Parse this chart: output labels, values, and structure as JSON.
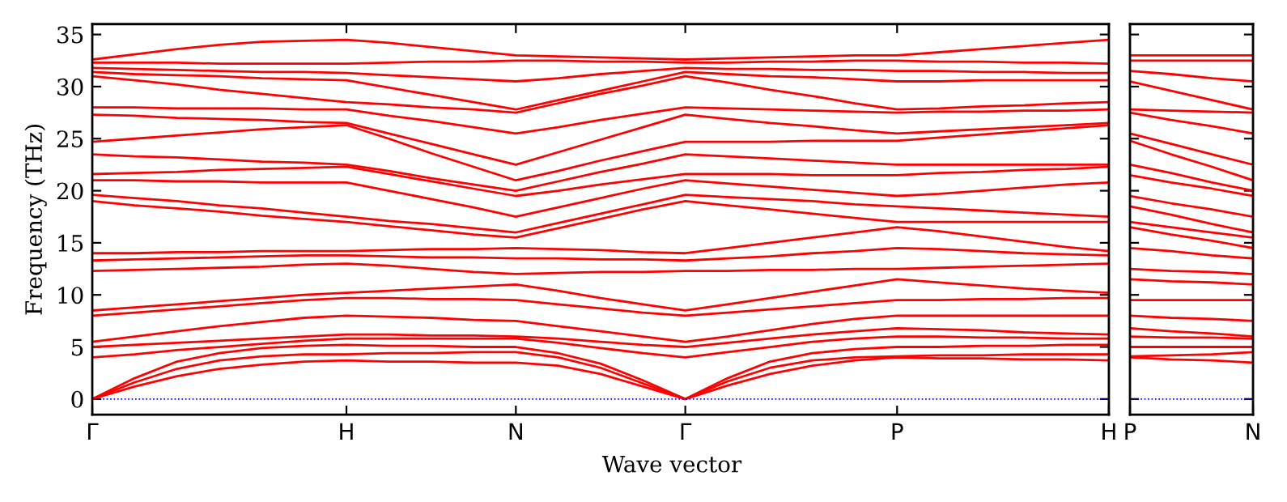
{
  "chart_data": [
    {
      "type": "line",
      "ylabel": "Frequency (THz)",
      "xlabel": "Wave vector",
      "categories": [
        "Γ",
        null,
        null,
        null,
        null,
        null,
        "H",
        null,
        null,
        null,
        "N",
        null,
        null,
        null,
        "Γ",
        null,
        null,
        null,
        null,
        "P",
        null,
        null,
        null,
        null,
        "H"
      ],
      "ylim": [
        -1.5,
        36
      ],
      "yticks": [
        0,
        5,
        10,
        15,
        20,
        25,
        30,
        35
      ],
      "ref_lines": [
        {
          "axis": "y",
          "value": 0,
          "color": "#0000ff",
          "line_style": "dotted"
        }
      ],
      "marker": "none",
      "line_style": "solid",
      "series": [
        {
          "color": "#ff0000",
          "values": [
            0,
            1.2,
            2.2,
            2.9,
            3.3,
            3.6,
            3.7,
            3.6,
            3.6,
            3.5,
            3.5,
            3.2,
            2.4,
            1.2,
            0,
            1.3,
            2.4,
            3.2,
            3.7,
            4.0,
            3.9,
            3.9,
            3.8,
            3.8,
            3.7
          ]
        },
        {
          "color": "#ff0000",
          "values": [
            0,
            1.6,
            2.9,
            3.7,
            4.1,
            4.3,
            4.3,
            4.4,
            4.4,
            4.5,
            4.5,
            4.0,
            3.0,
            1.5,
            0,
            1.7,
            3.0,
            3.7,
            4.0,
            4.1,
            4.2,
            4.2,
            4.3,
            4.3,
            4.3
          ]
        },
        {
          "color": "#ff0000",
          "values": [
            0,
            2.0,
            3.6,
            4.4,
            4.9,
            5.1,
            5.2,
            5.1,
            5.1,
            5.0,
            5.0,
            4.4,
            3.4,
            1.8,
            0,
            2.0,
            3.6,
            4.4,
            4.8,
            5.0,
            5.0,
            5.1,
            5.1,
            5.2,
            5.2
          ]
        },
        {
          "color": "#ff0000",
          "values": [
            4.0,
            4.3,
            4.7,
            5.0,
            5.3,
            5.6,
            5.8,
            5.8,
            5.8,
            5.8,
            5.8,
            5.4,
            4.9,
            4.4,
            4.0,
            4.5,
            5.0,
            5.5,
            5.8,
            6.0,
            6.0,
            5.9,
            5.9,
            5.8,
            5.8
          ]
        },
        {
          "color": "#ff0000",
          "values": [
            5.0,
            5.2,
            5.4,
            5.6,
            5.8,
            6.0,
            6.2,
            6.2,
            6.1,
            6.1,
            6.0,
            5.8,
            5.5,
            5.2,
            5.0,
            5.4,
            5.8,
            6.2,
            6.5,
            6.8,
            6.7,
            6.6,
            6.4,
            6.3,
            6.2
          ]
        },
        {
          "color": "#ff0000",
          "values": [
            5.5,
            6.0,
            6.5,
            7.0,
            7.4,
            7.8,
            8.0,
            7.9,
            7.8,
            7.6,
            7.5,
            7.0,
            6.5,
            6.0,
            5.5,
            6.0,
            6.6,
            7.2,
            7.7,
            8.0,
            8.0,
            8.0,
            8.0,
            8.0,
            8.0
          ]
        },
        {
          "color": "#ff0000",
          "values": [
            8.0,
            8.3,
            8.6,
            8.9,
            9.2,
            9.5,
            9.7,
            9.7,
            9.6,
            9.6,
            9.5,
            9.1,
            8.7,
            8.3,
            8.0,
            8.3,
            8.6,
            8.9,
            9.2,
            9.5,
            9.5,
            9.6,
            9.6,
            9.7,
            9.7
          ]
        },
        {
          "color": "#ff0000",
          "values": [
            8.5,
            8.8,
            9.1,
            9.4,
            9.7,
            10.0,
            10.2,
            10.4,
            10.6,
            10.8,
            11.0,
            10.4,
            9.7,
            9.1,
            8.5,
            9.1,
            9.7,
            10.3,
            10.9,
            11.5,
            11.2,
            10.9,
            10.6,
            10.4,
            10.2
          ]
        },
        {
          "color": "#ff0000",
          "values": [
            12.3,
            12.4,
            12.5,
            12.6,
            12.7,
            12.9,
            13.0,
            12.8,
            12.5,
            12.2,
            12.0,
            12.1,
            12.2,
            12.2,
            12.3,
            12.3,
            12.4,
            12.4,
            12.5,
            12.5,
            12.6,
            12.7,
            12.8,
            12.9,
            13.0
          ]
        },
        {
          "color": "#ff0000",
          "values": [
            13.3,
            13.4,
            13.5,
            13.6,
            13.7,
            13.8,
            13.8,
            13.7,
            13.6,
            13.6,
            13.5,
            13.5,
            13.4,
            13.4,
            13.3,
            13.5,
            13.7,
            14.0,
            14.2,
            14.5,
            14.4,
            14.2,
            14.0,
            13.9,
            13.8
          ]
        },
        {
          "color": "#ff0000",
          "values": [
            14.0,
            14.0,
            14.1,
            14.1,
            14.2,
            14.2,
            14.2,
            14.3,
            14.4,
            14.4,
            14.5,
            14.4,
            14.3,
            14.1,
            14.0,
            14.5,
            15.0,
            15.5,
            16.0,
            16.5,
            16.1,
            15.6,
            15.1,
            14.6,
            14.2
          ]
        },
        {
          "color": "#ff0000",
          "values": [
            19.0,
            18.6,
            18.3,
            18.0,
            17.6,
            17.3,
            17.0,
            16.6,
            16.2,
            15.8,
            15.5,
            16.4,
            17.3,
            18.2,
            19.0,
            18.6,
            18.2,
            17.8,
            17.4,
            17.0,
            17.0,
            17.0,
            17.0,
            17.0,
            17.0
          ]
        },
        {
          "color": "#ff0000",
          "values": [
            19.6,
            19.3,
            19.0,
            18.6,
            18.3,
            17.9,
            17.5,
            17.1,
            16.8,
            16.4,
            16.0,
            16.9,
            17.8,
            18.7,
            19.6,
            19.4,
            19.2,
            19.0,
            18.7,
            18.5,
            18.3,
            18.1,
            17.9,
            17.7,
            17.5
          ]
        },
        {
          "color": "#ff0000",
          "values": [
            21.0,
            21.0,
            20.9,
            20.9,
            20.8,
            20.8,
            20.8,
            20.0,
            19.2,
            18.4,
            17.5,
            18.4,
            19.3,
            20.2,
            21.0,
            20.7,
            20.4,
            20.1,
            19.8,
            19.5,
            19.7,
            20.0,
            20.3,
            20.6,
            20.8
          ]
        },
        {
          "color": "#ff0000",
          "values": [
            21.6,
            21.7,
            21.8,
            22.0,
            22.1,
            22.2,
            22.3,
            21.6,
            20.9,
            20.2,
            19.5,
            20.0,
            20.6,
            21.1,
            21.6,
            21.6,
            21.6,
            21.5,
            21.5,
            21.5,
            21.7,
            21.8,
            22.0,
            22.1,
            22.3
          ]
        },
        {
          "color": "#ff0000",
          "values": [
            23.5,
            23.3,
            23.2,
            23.0,
            22.8,
            22.7,
            22.5,
            21.9,
            21.2,
            20.6,
            20.0,
            20.9,
            21.8,
            22.6,
            23.5,
            23.3,
            23.1,
            22.9,
            22.7,
            22.5,
            22.5,
            22.5,
            22.5,
            22.5,
            22.5
          ]
        },
        {
          "color": "#ff0000",
          "values": [
            24.7,
            25.0,
            25.3,
            25.6,
            25.9,
            26.1,
            26.3,
            25.0,
            23.6,
            22.3,
            21.0,
            21.9,
            22.9,
            23.8,
            24.7,
            24.7,
            24.7,
            24.8,
            24.8,
            24.8,
            25.1,
            25.4,
            25.7,
            26.0,
            26.3
          ]
        },
        {
          "color": "#ff0000",
          "values": [
            27.3,
            27.2,
            27.0,
            26.9,
            26.8,
            26.6,
            26.5,
            25.5,
            24.5,
            23.5,
            22.5,
            23.7,
            24.9,
            26.1,
            27.3,
            26.9,
            26.5,
            26.2,
            25.8,
            25.5,
            25.7,
            25.9,
            26.1,
            26.3,
            26.5
          ]
        },
        {
          "color": "#ff0000",
          "values": [
            28.0,
            28.0,
            27.9,
            27.9,
            27.9,
            27.8,
            27.8,
            27.2,
            26.7,
            26.1,
            25.5,
            26.1,
            26.8,
            27.4,
            28.0,
            27.9,
            27.8,
            27.7,
            27.6,
            27.5,
            27.6,
            27.6,
            27.7,
            27.7,
            27.8
          ]
        },
        {
          "color": "#ff0000",
          "values": [
            31.0,
            30.6,
            30.2,
            29.7,
            29.3,
            28.9,
            28.5,
            28.3,
            28.0,
            27.8,
            27.5,
            28.4,
            29.3,
            30.1,
            31.0,
            30.4,
            29.7,
            29.1,
            28.4,
            27.8,
            27.9,
            28.1,
            28.2,
            28.4,
            28.5
          ]
        },
        {
          "color": "#ff0000",
          "values": [
            31.4,
            31.2,
            31.1,
            31.0,
            30.8,
            30.7,
            30.6,
            29.9,
            29.2,
            28.5,
            27.8,
            28.7,
            29.6,
            30.5,
            31.4,
            31.2,
            31.0,
            30.9,
            30.7,
            30.5,
            30.5,
            30.6,
            30.6,
            30.6,
            30.6
          ]
        },
        {
          "color": "#ff0000",
          "values": [
            31.8,
            31.7,
            31.6,
            31.5,
            31.4,
            31.4,
            31.3,
            31.1,
            30.9,
            30.7,
            30.5,
            30.8,
            31.2,
            31.5,
            31.8,
            31.7,
            31.7,
            31.6,
            31.6,
            31.5,
            31.5,
            31.4,
            31.4,
            31.3,
            31.3
          ]
        },
        {
          "color": "#ff0000",
          "values": [
            32.3,
            32.3,
            32.3,
            32.2,
            32.2,
            32.2,
            32.2,
            32.3,
            32.4,
            32.4,
            32.5,
            32.5,
            32.4,
            32.4,
            32.3,
            32.3,
            32.4,
            32.4,
            32.5,
            32.5,
            32.4,
            32.4,
            32.3,
            32.3,
            32.2
          ]
        },
        {
          "color": "#ff0000",
          "values": [
            32.6,
            33.1,
            33.6,
            34.0,
            34.3,
            34.4,
            34.5,
            34.2,
            33.8,
            33.4,
            33.0,
            32.9,
            32.8,
            32.7,
            32.6,
            32.7,
            32.8,
            32.9,
            33.0,
            33.0,
            33.3,
            33.6,
            33.9,
            34.2,
            34.5
          ]
        }
      ]
    },
    {
      "type": "line",
      "tick_labels": "x",
      "categories": [
        "P",
        null,
        null,
        "N"
      ],
      "ylim": [
        -1.5,
        36
      ],
      "yticks": [
        0,
        5,
        10,
        15,
        20,
        25,
        30,
        35
      ],
      "ref_lines": [
        {
          "axis": "y",
          "value": 0,
          "color": "#0000ff",
          "line_style": "dotted"
        }
      ],
      "marker": "none",
      "line_style": "solid",
      "series": [
        {
          "color": "#ff0000",
          "values": [
            4.0,
            3.8,
            3.7,
            3.5
          ]
        },
        {
          "color": "#ff0000",
          "values": [
            4.1,
            4.2,
            4.3,
            4.5
          ]
        },
        {
          "color": "#ff0000",
          "values": [
            5.0,
            5.0,
            5.0,
            5.0
          ]
        },
        {
          "color": "#ff0000",
          "values": [
            6.0,
            5.9,
            5.9,
            5.8
          ]
        },
        {
          "color": "#ff0000",
          "values": [
            6.8,
            6.5,
            6.3,
            6.0
          ]
        },
        {
          "color": "#ff0000",
          "values": [
            8.0,
            7.8,
            7.7,
            7.5
          ]
        },
        {
          "color": "#ff0000",
          "values": [
            9.5,
            9.5,
            9.5,
            9.5
          ]
        },
        {
          "color": "#ff0000",
          "values": [
            11.5,
            11.3,
            11.2,
            11.0
          ]
        },
        {
          "color": "#ff0000",
          "values": [
            12.5,
            12.3,
            12.2,
            12.0
          ]
        },
        {
          "color": "#ff0000",
          "values": [
            14.5,
            14.2,
            13.8,
            13.5
          ]
        },
        {
          "color": "#ff0000",
          "values": [
            16.5,
            15.8,
            15.2,
            14.5
          ]
        },
        {
          "color": "#ff0000",
          "values": [
            17.0,
            16.5,
            16.0,
            15.5
          ]
        },
        {
          "color": "#ff0000",
          "values": [
            18.5,
            17.7,
            16.8,
            16.0
          ]
        },
        {
          "color": "#ff0000",
          "values": [
            19.5,
            18.8,
            18.2,
            17.5
          ]
        },
        {
          "color": "#ff0000",
          "values": [
            21.5,
            20.8,
            20.2,
            19.5
          ]
        },
        {
          "color": "#ff0000",
          "values": [
            22.5,
            21.7,
            20.8,
            20.0
          ]
        },
        {
          "color": "#ff0000",
          "values": [
            24.8,
            23.5,
            22.3,
            21.0
          ]
        },
        {
          "color": "#ff0000",
          "values": [
            25.5,
            24.5,
            23.5,
            22.5
          ]
        },
        {
          "color": "#ff0000",
          "values": [
            27.5,
            26.8,
            26.2,
            25.5
          ]
        },
        {
          "color": "#ff0000",
          "values": [
            27.8,
            27.7,
            27.6,
            27.5
          ]
        },
        {
          "color": "#ff0000",
          "values": [
            30.5,
            29.6,
            28.7,
            27.8
          ]
        },
        {
          "color": "#ff0000",
          "values": [
            31.5,
            31.2,
            30.8,
            30.5
          ]
        },
        {
          "color": "#ff0000",
          "values": [
            32.5,
            32.5,
            32.5,
            32.5
          ]
        },
        {
          "color": "#ff0000",
          "values": [
            33.0,
            33.0,
            33.0,
            33.0
          ]
        }
      ]
    }
  ]
}
